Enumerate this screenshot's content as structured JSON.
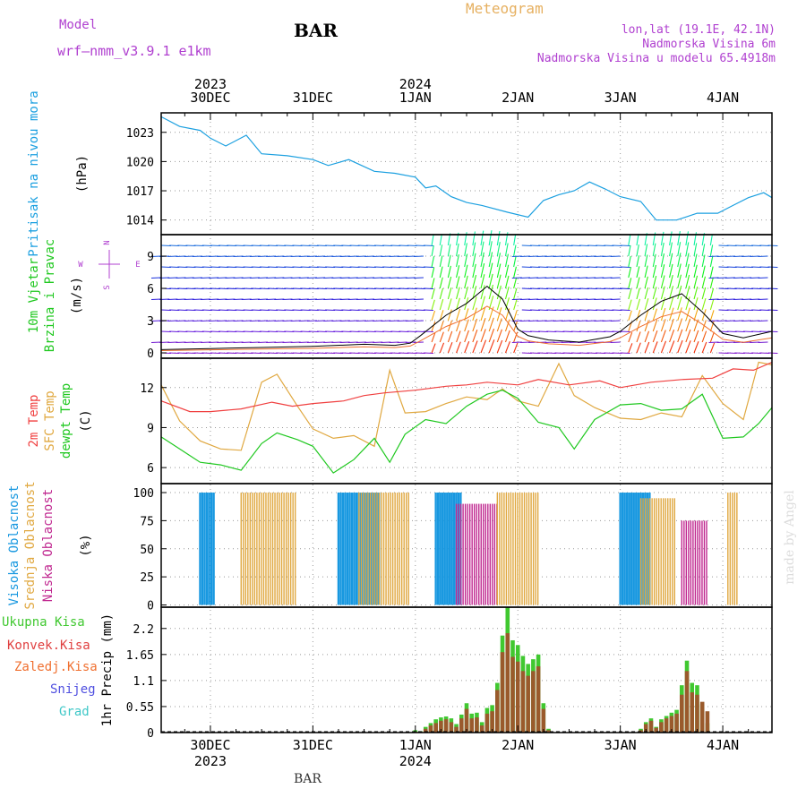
{
  "header": {
    "model_label": "Model",
    "model_name": "wrf—nmm_v3.9.1  e1km",
    "station": "BAR",
    "meteogram": "Meteogram",
    "lonlat": "lon,lat (19.1E, 42.1N)",
    "elevation": "Nadmorska Visina 6m",
    "model_elevation": "Nadmorska Visina u modelu 65.4918m",
    "footer_station": "BAR",
    "watermark": "made by Angel"
  },
  "colors": {
    "pressure": "#1ca0e0",
    "temp2m": "#f04040",
    "sfc": "#e0a840",
    "dewpt": "#20c820",
    "high_cloud": "#1898e0",
    "mid_cloud": "#e0a840",
    "low_cloud": "#c02890",
    "precip_total": "#40c830",
    "precip_conv": "#e04040",
    "purple": "#b040d0"
  },
  "chart_data": {
    "type": "meteogram",
    "x_range_days": [
      -0.48,
      5.48
    ],
    "top_axis": [
      {
        "day": 0,
        "label": "30DEC",
        "year": "2023"
      },
      {
        "day": 1,
        "label": "31DEC",
        "year": ""
      },
      {
        "day": 2,
        "label": "1JAN",
        "year": "2024"
      },
      {
        "day": 3,
        "label": "2JAN",
        "year": ""
      },
      {
        "day": 4,
        "label": "3JAN",
        "year": ""
      },
      {
        "day": 5,
        "label": "4JAN",
        "year": ""
      }
    ],
    "bottom_axis": [
      {
        "day": 0,
        "label": "30DEC",
        "year": "2023"
      },
      {
        "day": 1,
        "label": "31DEC",
        "year": ""
      },
      {
        "day": 2,
        "label": "1JAN",
        "year": "2024"
      },
      {
        "day": 3,
        "label": "2JAN",
        "year": ""
      },
      {
        "day": 4,
        "label": "3JAN",
        "year": ""
      },
      {
        "day": 5,
        "label": "4JAN",
        "year": ""
      }
    ],
    "pressure": {
      "label": "Pritisak na nivou mora",
      "unit": "(hPa)",
      "ylim": [
        1012.5,
        1025
      ],
      "ticks": [
        1014,
        1017,
        1020,
        1023
      ],
      "x": [
        -0.48,
        -0.3,
        -0.1,
        0,
        0.15,
        0.35,
        0.5,
        0.75,
        1.0,
        1.15,
        1.35,
        1.6,
        1.8,
        2.0,
        2.1,
        2.2,
        2.35,
        2.5,
        2.65,
        2.9,
        3.1,
        3.25,
        3.4,
        3.55,
        3.7,
        3.85,
        4.0,
        4.2,
        4.35,
        4.55,
        4.75,
        4.95,
        5.1,
        5.25,
        5.4,
        5.48
      ],
      "values": [
        1024.6,
        1023.6,
        1023.2,
        1022.4,
        1021.6,
        1022.7,
        1020.8,
        1020.6,
        1020.2,
        1019.6,
        1020.2,
        1019.0,
        1018.8,
        1018.4,
        1017.3,
        1017.5,
        1016.4,
        1015.8,
        1015.5,
        1014.8,
        1014.3,
        1016.0,
        1016.6,
        1017.0,
        1017.9,
        1017.2,
        1016.4,
        1015.9,
        1014.0,
        1014.0,
        1014.7,
        1014.7,
        1015.5,
        1016.3,
        1016.8,
        1016.3
      ]
    },
    "wind": {
      "label1": "10m Vjetar",
      "label2": "Brzina i Pravac",
      "unit": "(m/s)",
      "compass_n": "N",
      "compass_e": "E",
      "compass_w": "W",
      "compass_s": "S",
      "ylim": [
        -0.5,
        11
      ],
      "ticks": [
        0,
        3,
        6,
        9
      ],
      "speed_x": [
        -0.48,
        0,
        0.5,
        1,
        1.5,
        1.8,
        1.95,
        2.05,
        2.3,
        2.5,
        2.7,
        2.85,
        3.0,
        3.1,
        3.3,
        3.6,
        3.9,
        4.0,
        4.2,
        4.4,
        4.6,
        4.8,
        5.0,
        5.2,
        5.48
      ],
      "speed": [
        0.3,
        0.4,
        0.5,
        0.6,
        0.8,
        0.7,
        0.9,
        1.6,
        3.5,
        4.6,
        6.2,
        5.0,
        2.2,
        1.6,
        1.2,
        1.0,
        1.5,
        2.0,
        3.5,
        4.8,
        5.5,
        3.8,
        1.8,
        1.4,
        2.0
      ]
    },
    "temperature": {
      "label_2m": "2m Temp",
      "label_sfc": "SFC Temp",
      "label_dew": "dewpt Temp",
      "unit": "(C)",
      "ylim": [
        4.8,
        14.2
      ],
      "ticks": [
        6,
        9,
        12
      ],
      "t2m_x": [
        -0.48,
        -0.2,
        0,
        0.3,
        0.6,
        0.8,
        1.0,
        1.3,
        1.5,
        1.7,
        2.0,
        2.3,
        2.5,
        2.7,
        3.0,
        3.2,
        3.5,
        3.8,
        4.0,
        4.3,
        4.6,
        4.9,
        5.1,
        5.3,
        5.48
      ],
      "t2m": [
        11.0,
        10.2,
        10.2,
        10.4,
        10.9,
        10.6,
        10.8,
        11.0,
        11.4,
        11.6,
        11.8,
        12.1,
        12.2,
        12.4,
        12.2,
        12.6,
        12.2,
        12.5,
        12.0,
        12.4,
        12.6,
        12.7,
        13.4,
        13.3,
        13.9
      ],
      "sfc_x": [
        -0.48,
        -0.3,
        -0.1,
        0.1,
        0.3,
        0.5,
        0.65,
        0.85,
        1.0,
        1.2,
        1.4,
        1.6,
        1.75,
        1.9,
        2.1,
        2.3,
        2.5,
        2.7,
        2.85,
        3.0,
        3.2,
        3.4,
        3.55,
        3.75,
        4.0,
        4.2,
        4.4,
        4.6,
        4.8,
        5.0,
        5.2,
        5.35,
        5.48
      ],
      "sfc": [
        12.2,
        9.5,
        8.0,
        7.4,
        7.3,
        12.4,
        13.0,
        10.6,
        8.9,
        8.2,
        8.4,
        7.6,
        13.3,
        10.1,
        10.2,
        10.8,
        11.3,
        11.1,
        11.9,
        11.0,
        10.6,
        13.8,
        11.4,
        10.5,
        9.7,
        9.6,
        10.1,
        9.8,
        12.9,
        10.8,
        9.6,
        13.9,
        13.7
      ],
      "dew_x": [
        -0.48,
        -0.3,
        -0.1,
        0.1,
        0.3,
        0.5,
        0.65,
        0.85,
        1.0,
        1.2,
        1.4,
        1.6,
        1.75,
        1.9,
        2.1,
        2.3,
        2.5,
        2.7,
        2.85,
        3.0,
        3.2,
        3.4,
        3.55,
        3.75,
        4.0,
        4.2,
        4.4,
        4.6,
        4.8,
        5.0,
        5.2,
        5.35,
        5.48
      ],
      "dew": [
        8.3,
        7.4,
        6.4,
        6.2,
        5.8,
        7.8,
        8.6,
        8.1,
        7.6,
        5.6,
        6.6,
        8.2,
        6.4,
        8.5,
        9.6,
        9.3,
        10.6,
        11.5,
        11.8,
        11.2,
        9.4,
        9.0,
        7.4,
        9.6,
        10.7,
        10.8,
        10.3,
        10.4,
        11.5,
        8.2,
        8.3,
        9.3,
        10.5
      ]
    },
    "clouds": {
      "label_high": "Visoka Oblacnost",
      "label_mid": "Srednja Oblacnost",
      "label_low": "Niska Oblacnost",
      "unit": "(%)",
      "ylim": [
        -2,
        108
      ],
      "ticks": [
        0,
        25,
        50,
        75,
        100
      ],
      "segments": [
        {
          "from": -0.1,
          "to": 0.05,
          "kind": "high",
          "value": 100
        },
        {
          "from": 0.3,
          "to": 0.85,
          "kind": "mid",
          "value": 100
        },
        {
          "from": 1.25,
          "to": 1.65,
          "kind": "high",
          "value": 100
        },
        {
          "from": 1.45,
          "to": 1.95,
          "kind": "mid",
          "value": 100
        },
        {
          "from": 2.2,
          "to": 2.45,
          "kind": "high",
          "value": 100
        },
        {
          "from": 2.4,
          "to": 2.8,
          "kind": "low",
          "value": 90
        },
        {
          "from": 2.8,
          "to": 3.2,
          "kind": "mid",
          "value": 100
        },
        {
          "from": 4.0,
          "to": 4.3,
          "kind": "high",
          "value": 100
        },
        {
          "from": 4.2,
          "to": 4.55,
          "kind": "mid",
          "value": 95
        },
        {
          "from": 4.6,
          "to": 4.85,
          "kind": "low",
          "value": 75
        },
        {
          "from": 5.05,
          "to": 5.15,
          "kind": "mid",
          "value": 100
        }
      ]
    },
    "precip": {
      "label_total": "Ukupna Kisa",
      "label_conv": "Konvek.Kisa",
      "label_frozen": "Zaledj.Kisa",
      "label_snow": "Snijeg",
      "label_hail": "Grad",
      "unit": "1hr Precip (mm)",
      "ylim": [
        0,
        2.65
      ],
      "ticks": [
        0,
        0.55,
        1.1,
        1.65,
        2.2
      ],
      "x": [
        2.0,
        2.05,
        2.1,
        2.15,
        2.2,
        2.25,
        2.3,
        2.35,
        2.4,
        2.45,
        2.5,
        2.55,
        2.6,
        2.65,
        2.7,
        2.75,
        2.8,
        2.85,
        2.9,
        2.95,
        3.0,
        3.05,
        3.1,
        3.15,
        3.2,
        3.25,
        3.3,
        4.2,
        4.25,
        4.3,
        4.35,
        4.4,
        4.45,
        4.5,
        4.55,
        4.6,
        4.65,
        4.7,
        4.75,
        4.8,
        4.85
      ],
      "total": [
        0.05,
        0.03,
        0.12,
        0.2,
        0.28,
        0.32,
        0.34,
        0.3,
        0.18,
        0.38,
        0.62,
        0.4,
        0.42,
        0.22,
        0.52,
        0.58,
        1.05,
        2.05,
        2.65,
        1.95,
        1.85,
        1.62,
        1.45,
        1.55,
        1.65,
        0.62,
        0.08,
        0.08,
        0.22,
        0.3,
        0.12,
        0.28,
        0.35,
        0.42,
        0.48,
        1.0,
        1.52,
        1.05,
        1.0,
        0.6,
        0.2
      ],
      "conv": [
        0.02,
        0.02,
        0.08,
        0.15,
        0.2,
        0.25,
        0.28,
        0.22,
        0.12,
        0.3,
        0.5,
        0.3,
        0.32,
        0.15,
        0.4,
        0.45,
        0.9,
        1.7,
        2.1,
        1.6,
        1.5,
        1.3,
        1.2,
        1.3,
        1.4,
        0.5,
        0.05,
        0.05,
        0.18,
        0.25,
        0.1,
        0.22,
        0.3,
        0.35,
        0.4,
        0.8,
        1.3,
        0.85,
        0.8,
        0.65,
        0.45
      ]
    }
  }
}
